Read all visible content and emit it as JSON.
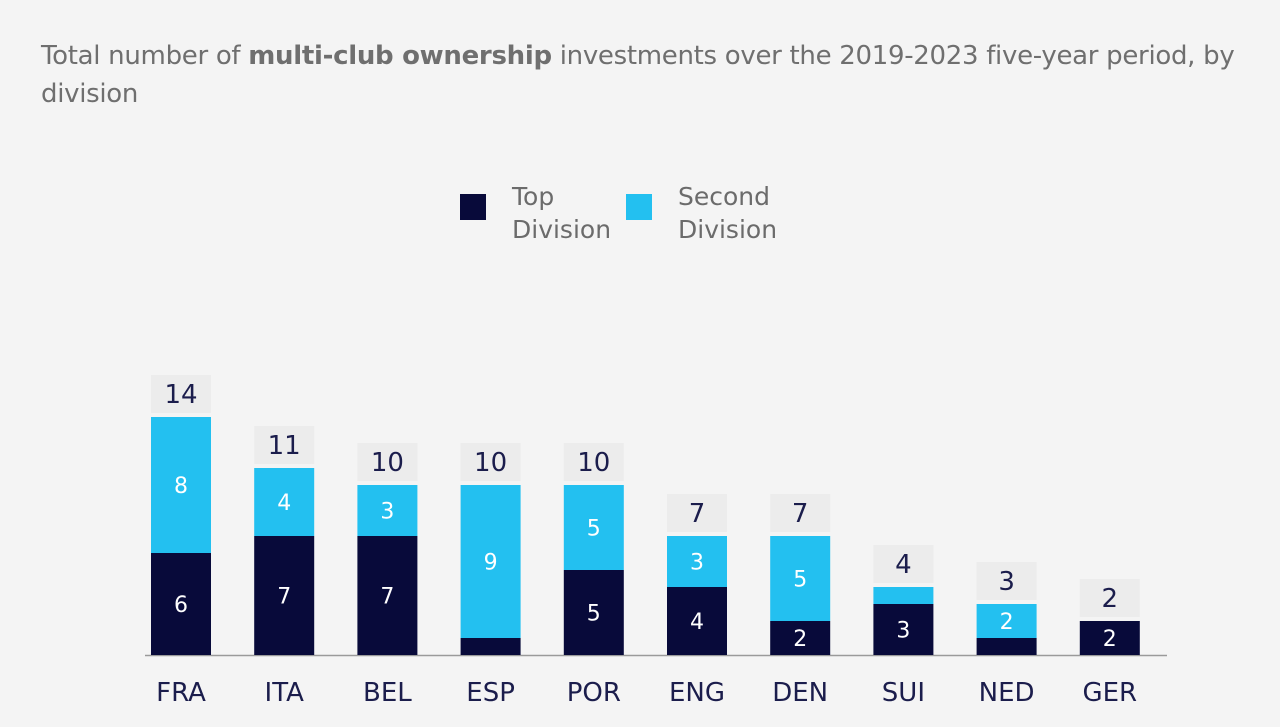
{
  "title": {
    "pre": "Total number of ",
    "bold": "multi-club ownership",
    "post": " investments over the 2019-2023 five-year period, by division"
  },
  "colors": {
    "top_division": "#080a3a",
    "second_division": "#23c0f0",
    "total_box": "#ececec",
    "axis": "#9a9a9a"
  },
  "chart_data": {
    "type": "bar",
    "stacked": true,
    "categories": [
      "FRA",
      "ITA",
      "BEL",
      "ESP",
      "POR",
      "ENG",
      "DEN",
      "SUI",
      "NED",
      "GER"
    ],
    "series": [
      {
        "name": "Top Division",
        "values": [
          6,
          7,
          7,
          1,
          5,
          4,
          2,
          3,
          1,
          2
        ],
        "labels": [
          "6",
          "7",
          "7",
          "",
          "5",
          "4",
          "2",
          "3",
          "",
          "2"
        ]
      },
      {
        "name": "Second Division",
        "values": [
          8,
          4,
          3,
          9,
          5,
          3,
          5,
          1,
          2,
          0
        ],
        "labels": [
          "8",
          "4",
          "3",
          "9",
          "5",
          "3",
          "5",
          "",
          "2",
          ""
        ]
      }
    ],
    "totals": [
      14,
      11,
      10,
      10,
      10,
      7,
      7,
      4,
      3,
      2
    ],
    "legend": {
      "position": "top-center",
      "entries": [
        {
          "line1": "Top",
          "line2": "Division"
        },
        {
          "line1": "Second",
          "line2": "Division"
        }
      ]
    },
    "xlabel": "",
    "ylabel": "",
    "ylim": [
      0,
      14
    ],
    "grid": false
  }
}
